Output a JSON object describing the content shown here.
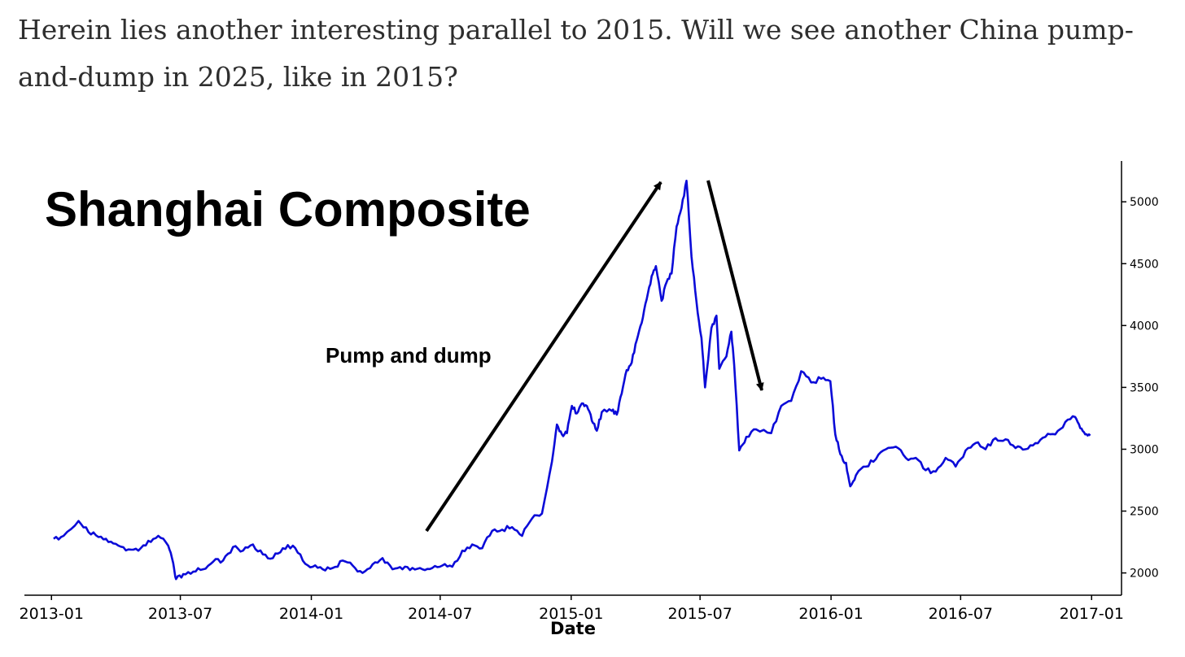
{
  "intro_text": "Herein lies another interesting parallel to 2015. Will we see another China pump-and-dump in 2025, like in 2015?",
  "chart_data": {
    "type": "line",
    "title": "Shanghai Composite",
    "xlabel": "Date",
    "ylabel": "",
    "annotation": "Pump and dump",
    "x_ticks": [
      "2013-01",
      "2013-07",
      "2014-01",
      "2014-07",
      "2015-01",
      "2015-07",
      "2016-01",
      "2016-07",
      "2017-01"
    ],
    "y_ticks": [
      2000,
      2500,
      3000,
      3500,
      4000,
      4500,
      5000
    ],
    "xlim": [
      "2012-11-24",
      "2017-02-12"
    ],
    "ylim": [
      1820,
      5330
    ],
    "y_axis_position": "right",
    "grid": false,
    "line_color": "#0b0bd8",
    "series": [
      {
        "x": [
          "2013-01-04",
          "2013-01-18",
          "2013-02-08",
          "2013-02-22",
          "2013-03-08",
          "2013-03-22",
          "2013-04-05",
          "2013-04-19",
          "2013-05-03",
          "2013-05-17",
          "2013-05-31",
          "2013-06-14",
          "2013-06-21",
          "2013-06-25",
          "2013-07-05",
          "2013-07-19",
          "2013-08-02",
          "2013-08-16",
          "2013-08-30",
          "2013-09-13",
          "2013-09-27",
          "2013-10-11",
          "2013-10-25",
          "2013-11-08",
          "2013-11-22",
          "2013-12-06",
          "2013-12-20",
          "2014-01-03",
          "2014-01-17",
          "2014-01-31",
          "2014-02-14",
          "2014-02-28",
          "2014-03-14",
          "2014-03-28",
          "2014-04-11",
          "2014-04-25",
          "2014-05-09",
          "2014-05-23",
          "2014-06-06",
          "2014-06-20",
          "2014-07-04",
          "2014-07-18",
          "2014-08-01",
          "2014-08-15",
          "2014-08-29",
          "2014-09-12",
          "2014-09-26",
          "2014-10-10",
          "2014-10-24",
          "2014-11-07",
          "2014-11-21",
          "2014-12-05",
          "2014-12-12",
          "2014-12-19",
          "2014-12-26",
          "2015-01-02",
          "2015-01-09",
          "2015-01-16",
          "2015-01-23",
          "2015-01-30",
          "2015-02-06",
          "2015-02-13",
          "2015-02-27",
          "2015-03-06",
          "2015-03-13",
          "2015-03-20",
          "2015-03-27",
          "2015-04-03",
          "2015-04-10",
          "2015-04-17",
          "2015-04-24",
          "2015-04-30",
          "2015-05-08",
          "2015-05-15",
          "2015-05-22",
          "2015-05-29",
          "2015-06-05",
          "2015-06-12",
          "2015-06-19",
          "2015-06-26",
          "2015-07-03",
          "2015-07-08",
          "2015-07-17",
          "2015-07-24",
          "2015-07-28",
          "2015-08-07",
          "2015-08-14",
          "2015-08-18",
          "2015-08-25",
          "2015-09-04",
          "2015-09-18",
          "2015-10-09",
          "2015-10-23",
          "2015-11-06",
          "2015-11-20",
          "2015-12-04",
          "2015-12-18",
          "2015-12-31",
          "2016-01-07",
          "2016-01-14",
          "2016-01-22",
          "2016-01-28",
          "2016-02-05",
          "2016-02-19",
          "2016-03-04",
          "2016-03-18",
          "2016-04-01",
          "2016-04-15",
          "2016-04-29",
          "2016-05-13",
          "2016-05-27",
          "2016-06-10",
          "2016-06-24",
          "2016-07-08",
          "2016-07-22",
          "2016-08-05",
          "2016-08-19",
          "2016-09-02",
          "2016-09-16",
          "2016-09-30",
          "2016-10-14",
          "2016-10-28",
          "2016-11-11",
          "2016-11-25",
          "2016-12-09",
          "2016-12-16",
          "2016-12-23",
          "2016-12-30"
        ],
        "y": [
          2276,
          2300,
          2420,
          2330,
          2290,
          2250,
          2220,
          2190,
          2180,
          2260,
          2300,
          2220,
          2080,
          1950,
          1990,
          2010,
          2030,
          2090,
          2100,
          2210,
          2180,
          2230,
          2150,
          2120,
          2200,
          2220,
          2100,
          2050,
          2030,
          2040,
          2100,
          2060,
          2000,
          2070,
          2120,
          2030,
          2030,
          2040,
          2030,
          2040,
          2060,
          2050,
          2180,
          2230,
          2200,
          2340,
          2350,
          2370,
          2300,
          2440,
          2480,
          2900,
          3200,
          3120,
          3130,
          3350,
          3290,
          3370,
          3350,
          3230,
          3150,
          3300,
          3310,
          3280,
          3450,
          3640,
          3700,
          3880,
          4020,
          4210,
          4400,
          4480,
          4200,
          4350,
          4420,
          4800,
          4950,
          5170,
          4560,
          4190,
          3900,
          3500,
          3980,
          4080,
          3650,
          3750,
          3950,
          3680,
          2990,
          3100,
          3160,
          3130,
          3350,
          3390,
          3630,
          3540,
          3570,
          3550,
          3120,
          2960,
          2890,
          2700,
          2790,
          2860,
          2920,
          3000,
          3020,
          2930,
          2930,
          2830,
          2820,
          2930,
          2860,
          2990,
          3050,
          3000,
          3090,
          3080,
          3010,
          3000,
          3050,
          3100,
          3120,
          3220,
          3260,
          3170,
          3120,
          3110
        ]
      }
    ]
  }
}
